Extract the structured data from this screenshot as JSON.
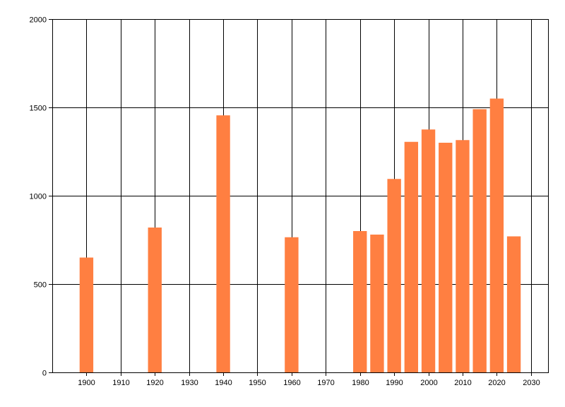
{
  "chart_data": {
    "type": "bar",
    "title": "",
    "xlabel": "",
    "ylabel": "",
    "x": [
      1900,
      1920,
      1940,
      1960,
      1980,
      1985,
      1990,
      1995,
      2000,
      2005,
      2010,
      2015,
      2020,
      2025
    ],
    "values": [
      650,
      820,
      1455,
      765,
      800,
      780,
      1095,
      1305,
      1375,
      1300,
      1315,
      1490,
      1550,
      770
    ],
    "xlim": [
      1890,
      2035
    ],
    "ylim": [
      0,
      2000
    ],
    "xticks": [
      1900,
      1910,
      1920,
      1930,
      1940,
      1950,
      1960,
      1970,
      1980,
      1990,
      2000,
      2010,
      2020,
      2030
    ],
    "yticks": [
      0,
      500,
      1000,
      1500,
      2000
    ],
    "bar_width_years": 4,
    "grid": true,
    "legend": "none",
    "colors": {
      "bar": "#ff7f41",
      "grid": "#000000",
      "axis": "#000000",
      "background": "#ffffff"
    }
  }
}
